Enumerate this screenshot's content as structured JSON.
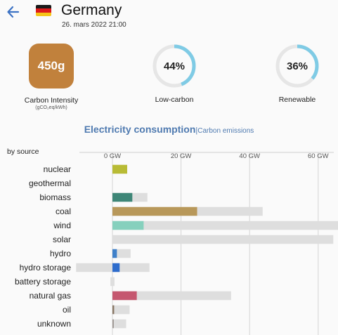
{
  "header": {
    "title": "Germany",
    "datetime": "26. mars 2022 21:00",
    "flag_colors": [
      "#1a1a1a",
      "#dd1a1a",
      "#f5c518"
    ]
  },
  "stats": {
    "carbon_intensity": {
      "value": "450g",
      "label": "Carbon Intensity",
      "unit": "(gCO₂eq/kWh)",
      "color": "#c1813c"
    },
    "low_carbon": {
      "value": "44%",
      "fraction": 0.44,
      "label": "Low-carbon"
    },
    "renewable": {
      "value": "36%",
      "fraction": 0.36,
      "label": "Renewable"
    },
    "gauge_color": "#7fcbe5",
    "gauge_track": "#e6e6e6"
  },
  "tabs": {
    "active": "Electricity consumption",
    "separator": "|",
    "other": "Carbon emissions"
  },
  "chart_data": {
    "type": "bar",
    "title": "by source",
    "xlabel": "",
    "ylabel": "",
    "xlim": [
      -5.2,
      67
    ],
    "ticks": [
      0,
      20,
      40,
      60
    ],
    "tick_labels": [
      "0 GW",
      "20 GW",
      "40 GW",
      "60 GW"
    ],
    "categories": [
      "nuclear",
      "geothermal",
      "biomass",
      "coal",
      "wind",
      "solar",
      "hydro",
      "hydro storage",
      "battery storage",
      "natural gas",
      "oil",
      "unknown"
    ],
    "production": [
      4.3,
      0,
      5.8,
      24.7,
      9.1,
      0,
      1.3,
      2.1,
      0,
      7.1,
      0.5,
      0.4
    ],
    "capacity": [
      4.3,
      0,
      10.2,
      43.8,
      69.9,
      64.4,
      5.3,
      10.8,
      0.6,
      34.6,
      5.0,
      4.0
    ],
    "capacity_negative": [
      0,
      0,
      0,
      0,
      0,
      0,
      0,
      10.6,
      0.6,
      0,
      0,
      0
    ],
    "colors": [
      "#b8bb35",
      "#b8bb35",
      "#3e8677",
      "#b8985a",
      "#86d0bd",
      "#f2c94c",
      "#3f80c9",
      "#2e6ccc",
      "#b0b0b0",
      "#c5576f",
      "#8a7866",
      "#a09a96"
    ],
    "capacity_color": "#dedede"
  }
}
